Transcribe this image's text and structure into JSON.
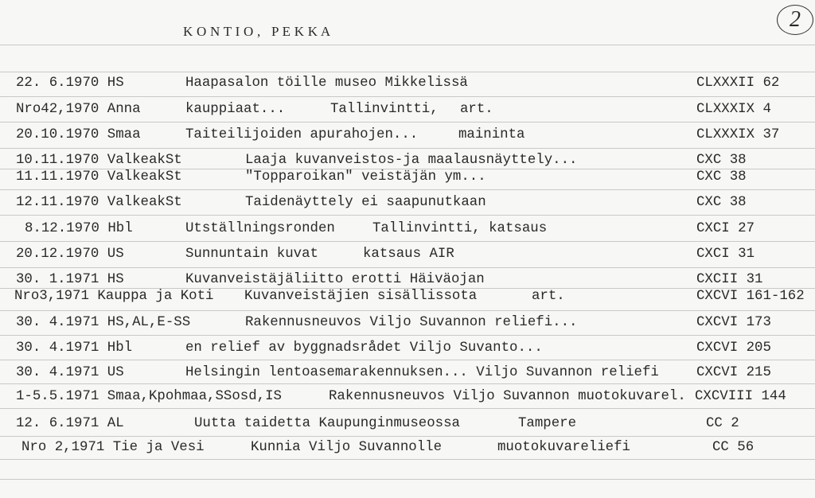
{
  "card": {
    "title": "K O N T I O ,   P E K K A",
    "card_number": "2"
  },
  "rows": [
    {
      "a": "22. 6.1970 HS",
      "b": "Haapasalon töille museo Mikkelissä",
      "ref": "CLXXXII 62"
    },
    {
      "a": "Nro42,1970 Anna",
      "b": "kauppiaat...",
      "c": "Tallinvintti,",
      "d": "art.",
      "ref": "CLXXXIX 4"
    },
    {
      "a": "20.10.1970 Smaa",
      "b": "Taiteilijoiden apurahojen...",
      "c": "maininta",
      "ref": "CLXXXIX 37"
    },
    {
      "a": "10.11.1970 ValkeakSt",
      "b": "Laaja kuvanveistos-ja maalausnäyttely...",
      "ref": "CXC 38"
    },
    {
      "a": "11.11.1970 ValkeakSt",
      "b": "\"Topparoikan\" veistäjän ym...",
      "ref": "CXC 38"
    },
    {
      "a": "12.11.1970 ValkeakSt",
      "b": "Taidenäyttely ei saapunutkaan",
      "ref": "CXC 38"
    },
    {
      "a": "8.12.1970 Hbl",
      "b": "Utställningsronden",
      "c": "Tallinvintti, katsaus",
      "ref": "CXCI 27"
    },
    {
      "a": "20.12.1970 US",
      "b": "Sunnuntain kuvat",
      "c": "katsaus AIR",
      "ref": "CXCI 31"
    },
    {
      "a": "30. 1.1971 HS",
      "b": "Kuvanveistäjäliitto erotti Häiväojan",
      "ref": "CXCII 31"
    },
    {
      "a": "Nro3,1971 Kauppa ja Koti",
      "b": "Kuvanveistäjien sisällissota",
      "c": "art.",
      "ref": "CXCVI 161-162"
    },
    {
      "a": "30. 4.1971 HS,AL,E-SS",
      "b": "Rakennusneuvos Viljo Suvannon reliefi...",
      "ref": "CXCVI 173"
    },
    {
      "a": "30. 4.1971 Hbl",
      "b": "en relief av byggnadsrådet Viljo Suvanto...",
      "ref": "CXCVI 205"
    },
    {
      "a": "30. 4.1971 US",
      "b": "Helsingin lentoasemarakennuksen... Viljo Suvannon reliefi",
      "ref": "CXCVI 215"
    },
    {
      "a": "1-5.5.1971 Smaa,Kpohmaa,SSosd,IS",
      "b": "Rakennusneuvos Viljo Suvannon muotokuvarel.",
      "ref": "CXCVIII 144"
    },
    {
      "a": "12. 6.1971 AL",
      "b": "Uutta taidetta Kaupunginmuseossa",
      "c": "Tampere",
      "ref": "CC 2"
    },
    {
      "a": "Nro 2,1971 Tie ja Vesi",
      "b": "Kunnia Viljo Suvannolle",
      "c": "muotokuvareliefi",
      "ref": "CC 56"
    }
  ]
}
